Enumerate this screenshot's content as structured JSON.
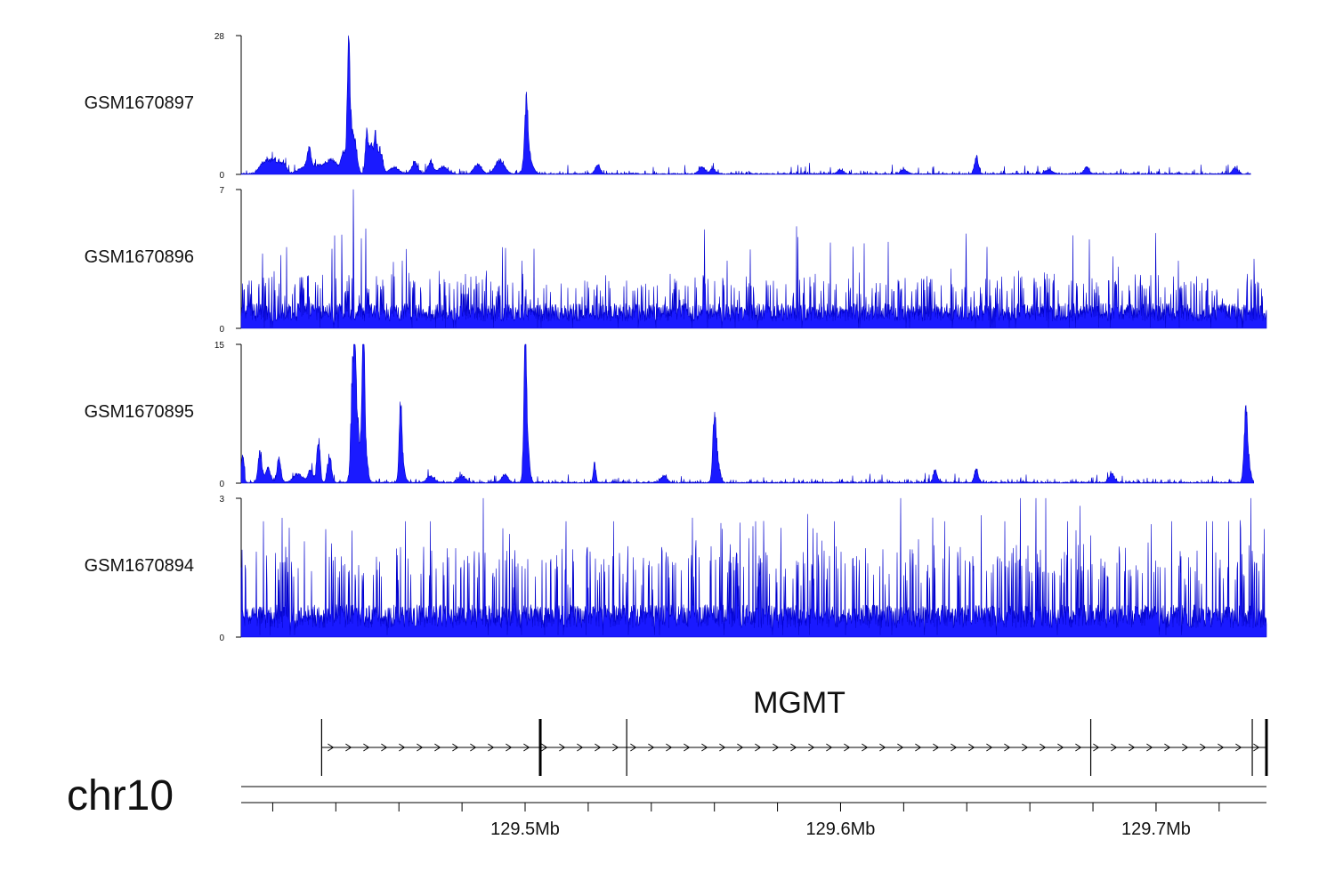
{
  "chart_data": {
    "type": "area",
    "chromosome": "chr10",
    "x_range_mb": [
      129.41,
      129.735
    ],
    "x_ticks": [
      {
        "value": 129.5,
        "label": "129.5Mb"
      },
      {
        "value": 129.6,
        "label": "129.6Mb"
      },
      {
        "value": 129.7,
        "label": "129.7Mb"
      }
    ],
    "minor_tick_step_mb": 0.02,
    "series_color": "#0000cc",
    "series_fill": "#1a1aff",
    "tracks": [
      {
        "name": "GSM1670897",
        "ylim": [
          0,
          28
        ],
        "y_tick_labels": [
          "0",
          "28"
        ],
        "x_end_mb": 129.73,
        "base": 0.25,
        "noise": 0.9,
        "peaks": [
          {
            "x": 129.4172,
            "h": 2.5,
            "w": 0.0015
          },
          {
            "x": 129.4205,
            "h": 3.2,
            "w": 0.0015
          },
          {
            "x": 129.4235,
            "h": 2.0,
            "w": 0.001
          },
          {
            "x": 129.43,
            "h": 1.5,
            "w": 0.002
          },
          {
            "x": 129.4315,
            "h": 4.5,
            "w": 0.0006
          },
          {
            "x": 129.435,
            "h": 2.0,
            "w": 0.002
          },
          {
            "x": 129.439,
            "h": 3.0,
            "w": 0.0015
          },
          {
            "x": 129.4425,
            "h": 5.0,
            "w": 0.0008
          },
          {
            "x": 129.444,
            "h": 27.5,
            "w": 0.0004
          },
          {
            "x": 129.4448,
            "h": 10.0,
            "w": 0.0006
          },
          {
            "x": 129.4462,
            "h": 6.5,
            "w": 0.0007
          },
          {
            "x": 129.4497,
            "h": 9.5,
            "w": 0.0004
          },
          {
            "x": 129.451,
            "h": 7.0,
            "w": 0.0006
          },
          {
            "x": 129.4525,
            "h": 8.0,
            "w": 0.0005
          },
          {
            "x": 129.454,
            "h": 5.5,
            "w": 0.0008
          },
          {
            "x": 129.4585,
            "h": 1.5,
            "w": 0.0015
          },
          {
            "x": 129.465,
            "h": 2.5,
            "w": 0.001
          },
          {
            "x": 129.47,
            "h": 3.0,
            "w": 0.0008
          },
          {
            "x": 129.474,
            "h": 1.5,
            "w": 0.0015
          },
          {
            "x": 129.485,
            "h": 2.2,
            "w": 0.0012
          },
          {
            "x": 129.492,
            "h": 3.0,
            "w": 0.0015
          },
          {
            "x": 129.5004,
            "h": 14.5,
            "w": 0.0005
          },
          {
            "x": 129.501,
            "h": 4.0,
            "w": 0.0012
          },
          {
            "x": 129.523,
            "h": 2.0,
            "w": 0.0008
          },
          {
            "x": 129.556,
            "h": 1.5,
            "w": 0.001
          },
          {
            "x": 129.5595,
            "h": 1.2,
            "w": 0.0008
          },
          {
            "x": 129.6,
            "h": 0.8,
            "w": 0.001
          },
          {
            "x": 129.62,
            "h": 1.0,
            "w": 0.001
          },
          {
            "x": 129.643,
            "h": 4.0,
            "w": 0.0006
          },
          {
            "x": 129.666,
            "h": 1.0,
            "w": 0.001
          },
          {
            "x": 129.678,
            "h": 1.5,
            "w": 0.0008
          },
          {
            "x": 129.725,
            "h": 1.5,
            "w": 0.0008
          }
        ]
      },
      {
        "name": "GSM1670896",
        "ylim": [
          0,
          7
        ],
        "y_tick_labels": [
          "0",
          "7"
        ],
        "x_end_mb": 129.735,
        "base": 0.9,
        "noise": 1.2,
        "spikes": [
          {
            "x": 129.4455,
            "h": 7.0
          },
          {
            "x": 129.4457,
            "h": 4.0
          },
          {
            "x": 129.442,
            "h": 2.6
          },
          {
            "x": 129.461,
            "h": 3.4
          },
          {
            "x": 129.499,
            "h": 3.4
          },
          {
            "x": 129.564,
            "h": 3.4
          },
          {
            "x": 129.606,
            "h": 2.8
          },
          {
            "x": 129.635,
            "h": 3.0
          },
          {
            "x": 129.651,
            "h": 2.6
          },
          {
            "x": 129.688,
            "h": 3.1
          },
          {
            "x": 129.707,
            "h": 3.4
          },
          {
            "x": 129.731,
            "h": 3.5
          }
        ]
      },
      {
        "name": "GSM1670895",
        "ylim": [
          0,
          15
        ],
        "y_tick_labels": [
          "0",
          "15"
        ],
        "x_end_mb": 129.731,
        "base": 0.15,
        "noise": 0.45,
        "peaks": [
          {
            "x": 129.4105,
            "h": 3.5,
            "w": 0.0004
          },
          {
            "x": 129.416,
            "h": 3.8,
            "w": 0.0006
          },
          {
            "x": 129.4185,
            "h": 1.8,
            "w": 0.0008
          },
          {
            "x": 129.422,
            "h": 3.0,
            "w": 0.0006
          },
          {
            "x": 129.428,
            "h": 1.0,
            "w": 0.0015
          },
          {
            "x": 129.432,
            "h": 1.5,
            "w": 0.0008
          },
          {
            "x": 129.4345,
            "h": 5.5,
            "w": 0.0005
          },
          {
            "x": 129.438,
            "h": 3.5,
            "w": 0.0006
          },
          {
            "x": 129.4455,
            "h": 14.0,
            "w": 0.0006
          },
          {
            "x": 129.4465,
            "h": 9.0,
            "w": 0.0008
          },
          {
            "x": 129.4487,
            "h": 15.0,
            "w": 0.0004
          },
          {
            "x": 129.449,
            "h": 5.5,
            "w": 0.0008
          },
          {
            "x": 129.4605,
            "h": 8.2,
            "w": 0.0004
          },
          {
            "x": 129.461,
            "h": 2.5,
            "w": 0.0008
          },
          {
            "x": 129.47,
            "h": 0.8,
            "w": 0.0012
          },
          {
            "x": 129.48,
            "h": 0.8,
            "w": 0.0012
          },
          {
            "x": 129.4935,
            "h": 1.0,
            "w": 0.001
          },
          {
            "x": 129.5,
            "h": 13.2,
            "w": 0.0004
          },
          {
            "x": 129.5005,
            "h": 6.5,
            "w": 0.0007
          },
          {
            "x": 129.522,
            "h": 2.5,
            "w": 0.0004
          },
          {
            "x": 129.544,
            "h": 0.8,
            "w": 0.001
          },
          {
            "x": 129.56,
            "h": 7.0,
            "w": 0.0005
          },
          {
            "x": 129.5608,
            "h": 3.0,
            "w": 0.0008
          },
          {
            "x": 129.63,
            "h": 1.5,
            "w": 0.0006
          },
          {
            "x": 129.643,
            "h": 1.7,
            "w": 0.0006
          },
          {
            "x": 129.686,
            "h": 1.2,
            "w": 0.0008
          },
          {
            "x": 129.7284,
            "h": 7.2,
            "w": 0.0005
          },
          {
            "x": 129.729,
            "h": 3.0,
            "w": 0.0008
          }
        ]
      },
      {
        "name": "GSM1670894",
        "ylim": [
          0,
          3
        ],
        "y_tick_labels": [
          "0",
          "3"
        ],
        "x_end_mb": 129.735,
        "base": 0.5,
        "noise": 1.0,
        "spikes": [
          {
            "x": 129.417,
            "h": 2.5
          },
          {
            "x": 129.462,
            "h": 2.5
          },
          {
            "x": 129.47,
            "h": 2.5
          },
          {
            "x": 129.513,
            "h": 2.5
          },
          {
            "x": 129.528,
            "h": 2.5
          },
          {
            "x": 129.573,
            "h": 2.5
          },
          {
            "x": 129.598,
            "h": 2.5
          },
          {
            "x": 129.619,
            "h": 3.0
          },
          {
            "x": 129.633,
            "h": 2.5
          },
          {
            "x": 129.652,
            "h": 2.5
          },
          {
            "x": 129.657,
            "h": 3.0
          },
          {
            "x": 129.662,
            "h": 3.0
          },
          {
            "x": 129.665,
            "h": 3.0
          },
          {
            "x": 129.672,
            "h": 2.5
          },
          {
            "x": 129.705,
            "h": 2.5
          },
          {
            "x": 129.716,
            "h": 2.5
          },
          {
            "x": 129.718,
            "h": 2.5
          },
          {
            "x": 129.723,
            "h": 2.5
          },
          {
            "x": 129.73,
            "h": 3.0
          }
        ]
      }
    ],
    "gene": {
      "name": "MGMT",
      "strand": "+",
      "start_mb": 129.4355,
      "end_mb": 129.735,
      "exons_mb": [
        129.4355,
        129.5048,
        129.5322,
        129.6793,
        129.7305,
        129.735
      ]
    }
  }
}
